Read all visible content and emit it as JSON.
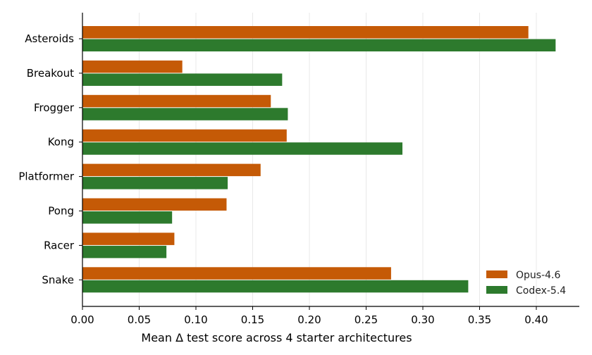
{
  "chart_data": {
    "type": "bar",
    "orientation": "horizontal",
    "categories": [
      "Asteroids",
      "Breakout",
      "Frogger",
      "Kong",
      "Platformer",
      "Pong",
      "Racer",
      "Snake"
    ],
    "series": [
      {
        "name": "Opus-4.6",
        "color": "#c55a06",
        "values": [
          0.393,
          0.088,
          0.166,
          0.18,
          0.157,
          0.127,
          0.081,
          0.272
        ]
      },
      {
        "name": "Codex-5.4",
        "color": "#2d7a2d",
        "values": [
          0.417,
          0.176,
          0.181,
          0.282,
          0.128,
          0.079,
          0.074,
          0.34
        ]
      }
    ],
    "xlabel": "Mean Δ test score across 4 starter architectures",
    "ylabel": "",
    "xlim": [
      0.0,
      0.44
    ],
    "xticks": [
      "0.00",
      "0.05",
      "0.10",
      "0.15",
      "0.20",
      "0.25",
      "0.30",
      "0.35",
      "0.40"
    ],
    "grid": "vertical",
    "legend": "bottom-right"
  }
}
